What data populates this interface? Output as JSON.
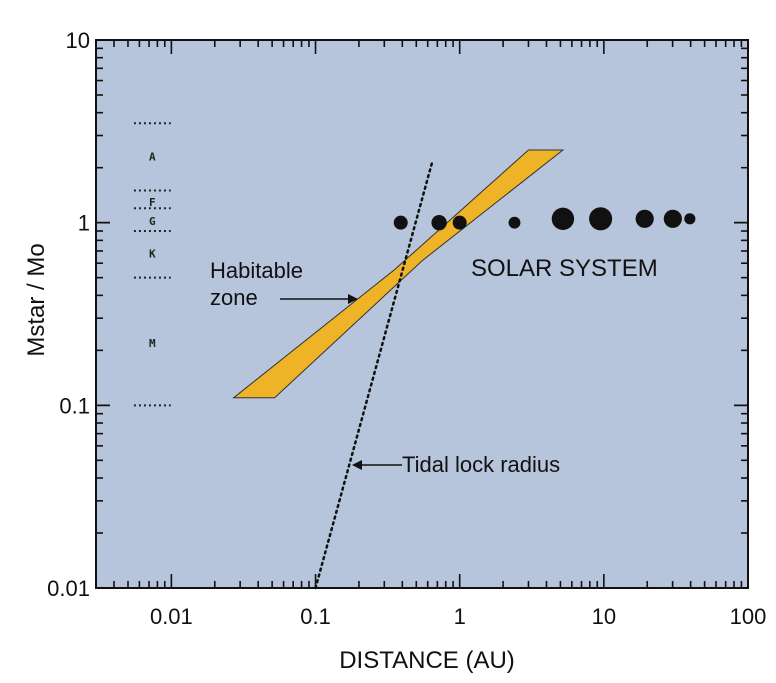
{
  "chart_data": {
    "type": "scatter",
    "xlabel": "DISTANCE  (AU)",
    "ylabel": "Mstar / Mo",
    "xscale": "log",
    "yscale": "log",
    "xlim": [
      0.003,
      100
    ],
    "ylim": [
      0.01,
      10
    ],
    "x_ticks": [
      {
        "value": 0.01,
        "label": "0.01"
      },
      {
        "value": 0.1,
        "label": "0.1"
      },
      {
        "value": 1,
        "label": "1"
      },
      {
        "value": 10,
        "label": "10"
      },
      {
        "value": 100,
        "label": "100"
      }
    ],
    "y_ticks": [
      {
        "value": 0.01,
        "label": "0.01"
      },
      {
        "value": 0.1,
        "label": "0.1"
      },
      {
        "value": 1,
        "label": "1"
      },
      {
        "value": 10,
        "label": "10"
      }
    ],
    "colors": {
      "plot_background": "#b6c5db",
      "habitable_zone": "#eeb327",
      "ink": "#111111"
    },
    "habitable_zone": {
      "polygon": [
        [
          0.027,
          0.11
        ],
        [
          0.052,
          0.11
        ],
        [
          0.55,
          0.62
        ],
        [
          5.2,
          2.5
        ],
        [
          3.0,
          2.5
        ],
        [
          0.35,
          0.55
        ]
      ]
    },
    "tidal_lock_radius": {
      "points": [
        [
          0.1,
          0.01
        ],
        [
          0.65,
          2.2
        ]
      ]
    },
    "solar_system": {
      "label": "SOLAR SYSTEM",
      "planets": [
        {
          "x": 0.39,
          "y": 1,
          "size": 1.0
        },
        {
          "x": 0.72,
          "y": 1,
          "size": 1.1
        },
        {
          "x": 1.0,
          "y": 1,
          "size": 1.0
        },
        {
          "x": 2.4,
          "y": 1,
          "size": 0.85
        },
        {
          "x": 5.2,
          "y": 1.05,
          "size": 1.6
        },
        {
          "x": 9.5,
          "y": 1.05,
          "size": 1.65
        },
        {
          "x": 19.2,
          "y": 1.05,
          "size": 1.3
        },
        {
          "x": 30.1,
          "y": 1.05,
          "size": 1.3
        },
        {
          "x": 39.5,
          "y": 1.05,
          "size": 0.8
        }
      ]
    },
    "spectral_classes": {
      "boundaries": [
        3.5,
        1.5,
        1.2,
        0.9,
        0.5,
        0.1
      ],
      "labels": [
        {
          "label": "A",
          "y": 2.3
        },
        {
          "label": "F",
          "y": 1.3
        },
        {
          "label": "G",
          "y": 1.02
        },
        {
          "label": "K",
          "y": 0.68
        },
        {
          "label": "M",
          "y": 0.22
        }
      ],
      "x_range": [
        0.0055,
        0.0099
      ]
    },
    "annotations": [
      {
        "id": "habitable",
        "lines": [
          "Habitable",
          "zone"
        ]
      },
      {
        "id": "tidal",
        "lines": [
          "Tidal lock radius"
        ]
      }
    ]
  }
}
